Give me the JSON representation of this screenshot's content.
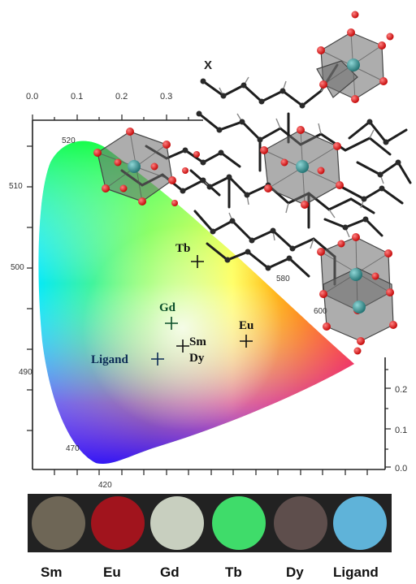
{
  "axis_x_label": "X",
  "x_ticks": [
    "0.0",
    "0.1",
    "0.2",
    "0.3"
  ],
  "y_ticks": [
    "0.2",
    "0.1",
    "0.0"
  ],
  "wavelength_labels": [
    "520",
    "510",
    "500",
    "490",
    "470",
    "420",
    "580",
    "600"
  ],
  "points": [
    {
      "label": "Tb",
      "color": "#111111"
    },
    {
      "label": "Gd",
      "color": "#0b4f2a"
    },
    {
      "label": "Sm",
      "color": "#111111"
    },
    {
      "label": "Dy",
      "color": "#111111"
    },
    {
      "label": "Eu",
      "color": "#111111"
    },
    {
      "label": "Ligand",
      "color": "#0a2a55"
    }
  ],
  "samples": [
    {
      "label": "Sm",
      "color": "#6e6656"
    },
    {
      "label": "Eu",
      "color": "#a1141d"
    },
    {
      "label": "Gd",
      "color": "#c8cfbf"
    },
    {
      "label": "Tb",
      "color": "#3fdc6a"
    },
    {
      "label": "Dy",
      "color": "#5e4e4c"
    },
    {
      "label": "Ligand",
      "color": "#5fb3d9"
    }
  ],
  "colors": {
    "strip_background": "#222222",
    "crystal_polyhedron": "#6a6a6a",
    "atom_oxygen": "#e01010",
    "atom_metal": "#3f9a9a",
    "atom_carbon": "#2a2a2a"
  }
}
